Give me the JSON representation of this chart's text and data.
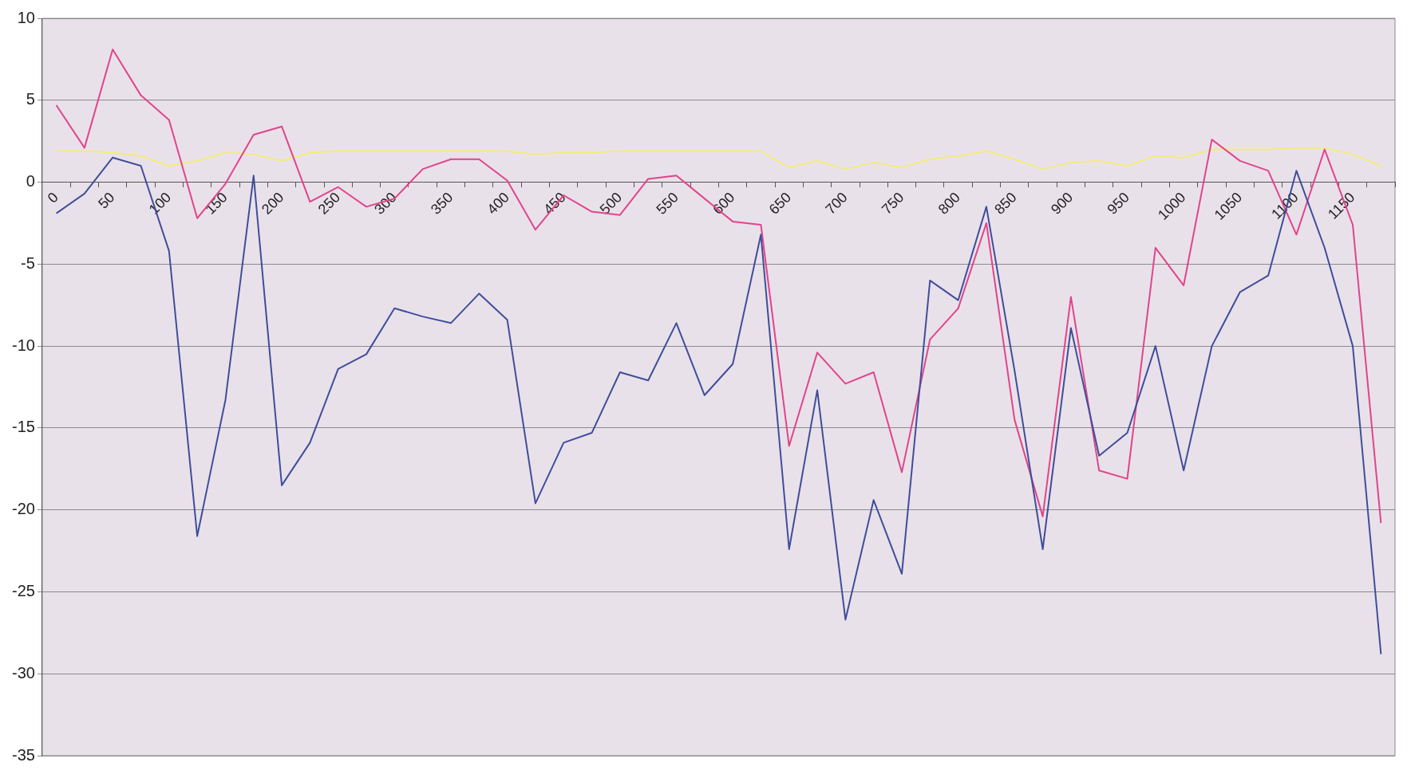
{
  "chart_data": {
    "type": "line",
    "categories": [
      "0",
      null,
      "50",
      null,
      "100",
      null,
      "150",
      null,
      "200",
      null,
      "250",
      null,
      "300",
      null,
      "350",
      null,
      "400",
      null,
      "450",
      null,
      "500",
      null,
      "550",
      null,
      "600",
      null,
      "650",
      null,
      "700",
      null,
      "750",
      null,
      "800",
      null,
      "850",
      null,
      "900",
      null,
      "950",
      null,
      "1000",
      null,
      "1050",
      null,
      "1100",
      null,
      "1150",
      null
    ],
    "series": [
      {
        "color": "#3f4e9a",
        "values": [
          -1.9,
          -0.7,
          1.5,
          1.0,
          -4.2,
          -21.6,
          -13.3,
          0.4,
          -18.5,
          -15.9,
          -11.4,
          -10.5,
          -7.7,
          -8.2,
          -8.6,
          -6.8,
          -8.4,
          -19.6,
          -15.9,
          -15.3,
          -11.6,
          -12.1,
          -8.6,
          -13.0,
          -11.1,
          -3.2,
          -22.4,
          -12.7,
          -26.7,
          -19.4,
          -23.9,
          -6.0,
          -7.2,
          -1.5,
          -11.5,
          -22.4,
          -8.9,
          -16.7,
          -15.3,
          -10.0,
          -17.6,
          -10.0,
          -6.7,
          -5.7,
          0.7,
          -4.0,
          -10.0,
          -28.8
        ]
      },
      {
        "color": "#e0458a",
        "values": [
          4.7,
          2.1,
          8.1,
          5.3,
          3.8,
          -2.2,
          -0.1,
          2.9,
          3.4,
          -1.2,
          -0.3,
          -1.5,
          -1.0,
          0.8,
          1.4,
          1.4,
          0.1,
          -2.9,
          -0.8,
          -1.8,
          -2.0,
          0.2,
          0.4,
          -1.0,
          -2.4,
          -2.6,
          -16.1,
          -10.4,
          -12.3,
          -11.6,
          -17.7,
          -9.6,
          -7.7,
          -2.5,
          -14.5,
          -20.4,
          -7.0,
          -17.6,
          -18.1,
          -4.0,
          -6.3,
          2.6,
          1.3,
          0.7,
          -3.2,
          2.0,
          -2.6,
          -20.8
        ]
      },
      {
        "color": "#f3ec7a",
        "values": [
          1.9,
          1.9,
          1.8,
          1.6,
          1.0,
          1.3,
          1.8,
          1.7,
          1.3,
          1.8,
          1.9,
          1.9,
          1.9,
          1.9,
          1.9,
          1.9,
          1.9,
          1.7,
          1.8,
          1.8,
          1.9,
          1.9,
          1.9,
          1.9,
          1.9,
          1.9,
          0.9,
          1.3,
          0.8,
          1.2,
          0.9,
          1.4,
          1.6,
          1.9,
          1.4,
          0.8,
          1.2,
          1.3,
          1.0,
          1.6,
          1.5,
          2.0,
          2.0,
          2.0,
          2.1,
          2.1,
          1.7,
          1.0
        ]
      }
    ],
    "ylim": [
      -35,
      10
    ],
    "yticks": [
      -35,
      -30,
      -25,
      -20,
      -15,
      -10,
      -5,
      0,
      5,
      10
    ],
    "grid": "y",
    "legend": false,
    "marker": "none",
    "line_style": "solid"
  }
}
